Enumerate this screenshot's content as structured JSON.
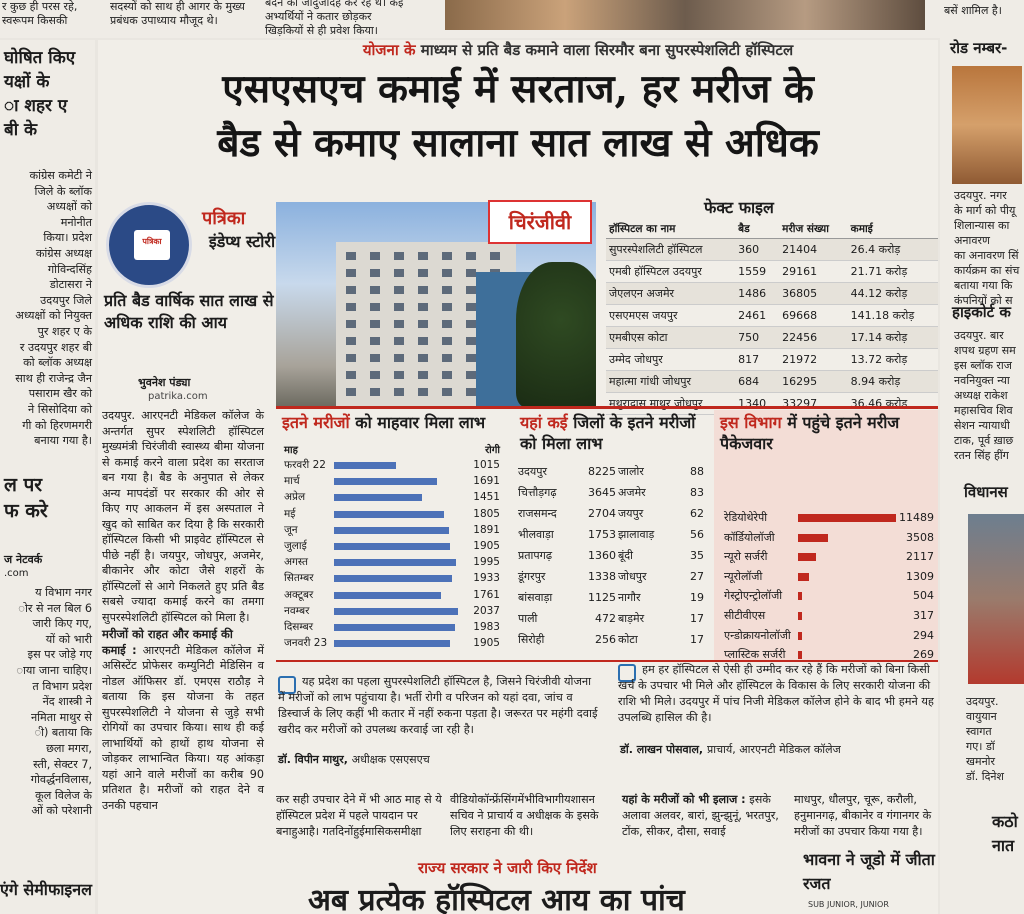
{
  "top_strip": {
    "left_fragments": [
      "र कुछ ही परस रहे,",
      "स्वरूपम किसकी"
    ],
    "mid_fragments": [
      "सदस्यों को साथ ही आगर के मुख्य",
      "प्रबंधक उपाध्याय मौजूद थे।"
    ],
    "mid2_fragments": [
      "बंदन का जादुजादह कर रह थ। कई",
      "अभ्यर्थियों ने कतार छोड़कर",
      "खिड़कियों से ही प्रवेश किया।"
    ],
    "right_fragment": "बसें शामिल है।"
  },
  "left_column": {
    "heading": [
      "घोषित किए",
      "यक्षों के",
      "ा शहर ए",
      "बी के"
    ],
    "body": [
      "कांग्रेस कमेटी ने",
      "जिले के ब्लॉक",
      "अध्यक्षों को",
      "मनोनीत",
      "किया। प्रदेश",
      "कांग्रेस अध्यक्ष",
      "गोविन्दसिंह",
      "डोटासरा ने",
      "उदयपुर जिले",
      "अध्यक्षों को नियुक्त",
      "पुर शहर ए के",
      "र उदयपुर शहर बी",
      "को ब्लॉक अध्यक्ष",
      "साथ ही राजेन्द्र जैन",
      "पसाराम खैर को",
      "ने सिसोदिया को",
      "गी को हिरणमगरी",
      "बनाया गया है।"
    ],
    "heading2": [
      "ल पर",
      "फ करे"
    ],
    "byline": "ज नेटवर्क",
    "site": ".com",
    "body2": [
      "य विभाग नगर",
      "ोर से नल बिल 6",
      "जारी किए गए,",
      "यों को भारी",
      "इस पर जोड़े गए",
      "ाया जाना चाहिए।",
      "त विभाग प्रदेश",
      "नेंद शास्त्री ने",
      "नमिता माथुर से",
      "ी) बताया कि",
      "छला मगरा,",
      "स्ती, सेक्टर 7,",
      "गोवर्द्धनविलास,",
      "कूल विलेज के",
      "ओं को परेशानी"
    ],
    "footer": "एंगे सेमीफाइनल मैच"
  },
  "article": {
    "kicker_red": "योजना के",
    "kicker_rest": "माध्यम से प्रति बैड कमाने वाला सिरमौर बना सुपरस्पेशलिटी हॉस्पिटल",
    "headline_line1": "एसएसएच कमाई में सरताज, हर मरीज के",
    "headline_line2": "बैड से कमाए सालाना सात लाख से अधिक",
    "brand": "पत्रिका",
    "logo_text": "पत्रिका",
    "section": "इंडेप्थ स्टोरी",
    "summary": "प्रति बैड वार्षिक सात लाख से अधिक राशि की आय",
    "byline": "भुवनेश पंड्या",
    "byline_site": "patrika.com",
    "body": "उदयपुर. आरएनटी मेडिकल कॉलेज के अन्तर्गत सुपर स्पेशलिटी हॉस्पिटल मुख्यमंत्री चिरंजीवी स्वास्थ्य बीमा योजना से कमाई करने वाला प्रदेश का सरताज बन गया है। बैड के अनुपात से लेकर अन्य मापदंडों पर सरकार की ओर से किए गए आकलन में इस अस्पताल ने खुद को साबित कर दिया है कि सरकारी हॉस्पिटल किसी भी प्राइवेट हॉस्पिटल से पीछे नहीं है। जयपुर, जोधपुर, अजमेर, बीकानेर और कोटा जैसे शहरों के हॉस्पिटलों से आगे निकलते हुए प्रति बैड सबसे ज्यादा कमाई करने का तमगा सुपरस्पेशलिटी हॉस्पिटल को मिला है।",
    "sub_heading": "मरीजों को राहत और कमाई की",
    "body2_lead": "कमाई :",
    "body2": "आरएनटी मेडिकल कॉलेज में असिस्टेंट प्रोफेसर कम्युनिटी मेडिसिन व नोडल ऑफिसर डॉ. एमएस राठौड़ ने बताया कि इस योजना के तहत सुपरस्पेशलिटी ने योजना से जुड़े सभी रोगियों का उपचार किया। साथ ही कई लाभार्थियों को हाथों हाथ योजना से जोड़कर लाभान्वित किया। यह आंकड़ा यहां आने वाले मरीजों का करीब 90 प्रतिशत है। मरीजों को राहत देने व उनकी पहचान"
  },
  "photo": {
    "badge": "चिरंजीवी"
  },
  "fact_file": {
    "title": "फेक्ट फाइल",
    "headers": [
      "हॉस्पिटल का नाम",
      "बैड",
      "मरीज संख्या",
      "कमाई"
    ],
    "rows": [
      [
        "सुपरस्पेशलिटी हॉस्पिटल",
        "360",
        "21404",
        "26.4 करोड़"
      ],
      [
        "एमबी हॉस्पिटल उदयपुर",
        "1559",
        "29161",
        "21.71 करोड़"
      ],
      [
        "जेएलएन अजमेर",
        "1486",
        "36805",
        "44.12 करोड़"
      ],
      [
        "एसएमएस जयपुर",
        "2461",
        "69668",
        "141.18 करोड़"
      ],
      [
        "एमबीएस कोटा",
        "750",
        "22456",
        "17.14 करोड़"
      ],
      [
        "उम्मेद जोधपुर",
        "817",
        "21972",
        "13.72 करोड़"
      ],
      [
        "महात्मा गांधी जोधपुर",
        "684",
        "16295",
        "8.94 करोड़"
      ],
      [
        "मथुरादास माथुर जोधपुर",
        "1340",
        "33297",
        "36.46 करोड़"
      ]
    ]
  },
  "monthly": {
    "title_red": "इतने मरीजों",
    "title_rest": "को माहवार मिला लाभ",
    "col_month": "माह",
    "col_patients": "रोगी",
    "chart_data": {
      "type": "bar",
      "categories": [
        "फरवरी 22",
        "मार्च",
        "अप्रेल",
        "मई",
        "जून",
        "जुलाई",
        "अगस्त",
        "सितम्बर",
        "अक्टूबर",
        "नवम्बर",
        "दिसम्बर",
        "जनवरी 23"
      ],
      "values": [
        1015,
        1691,
        1451,
        1805,
        1891,
        1905,
        1995,
        1933,
        1761,
        2037,
        1983,
        1905
      ]
    }
  },
  "districts": {
    "title_red": "यहां कई",
    "title_rest": "जिलों के इतने मरीजों को मिला लाभ",
    "left": [
      [
        "उदयपुर",
        "8225"
      ],
      [
        "चित्तौड़गढ़",
        "3645"
      ],
      [
        "राजसमन्द",
        "2704"
      ],
      [
        "भीलवाड़ा",
        "1753"
      ],
      [
        "प्रतापगढ़",
        "1360"
      ],
      [
        "डूंगरपुर",
        "1338"
      ],
      [
        "बांसवाड़ा",
        "1125"
      ],
      [
        "पाली",
        "472"
      ],
      [
        "सिरोही",
        "256"
      ]
    ],
    "right": [
      [
        "जालोर",
        "88"
      ],
      [
        "अजमेर",
        "83"
      ],
      [
        "जयपुर",
        "62"
      ],
      [
        "झालावाड़",
        "56"
      ],
      [
        "बूंदी",
        "35"
      ],
      [
        "जोधपुर",
        "27"
      ],
      [
        "नागौर",
        "19"
      ],
      [
        "बाड़मेर",
        "17"
      ],
      [
        "कोटा",
        "17"
      ]
    ]
  },
  "departments": {
    "title_red": "इस विभाग",
    "title_rest": "में पहुंचे इतने मरीज पैकेजवार",
    "chart_data": {
      "type": "bar",
      "categories": [
        "रेडियोथेरेपी",
        "कॉर्डियोलॉजी",
        "न्यूरो सर्जरी",
        "न्यूरोलॉजी",
        "गेस्ट्रोएन्ट्रोलॉजी",
        "सीटीवीएस",
        "एन्डोक्रायनोलॉजी",
        "प्लास्टिक सर्जरी"
      ],
      "values": [
        11489,
        3508,
        2117,
        1309,
        504,
        317,
        294,
        269
      ]
    }
  },
  "quotes": {
    "q1": "यह प्रदेश का पहला सुपरस्पेशलिटी हॉस्पिटल है, जिसने चिरंजीवी योजना में मरीजों को लाभ पहुंचाया है। भर्ती रोगी व परिजन को यहां दवा, जांच व डिस्चार्ज के लिए कहीं भी कतार में नहीं रुकना पड़ता है। जरूरत पर महंगी दवाई खरीद कर मरीजों को उपलब्ध करवाई जा रही है।",
    "q1_name": "डॉ. विपीन माथुर,",
    "q1_title": "अधीक्षक एसएसएच",
    "q2": "हम हर हॉस्पिटल से ऐसी ही उम्मीद कर रहे हैं कि मरीजों को बिना किसी खर्च के उपचार भी मिले और हॉस्पिटल के विकास के लिए सरकारी योजना की राशि भी मिले। उदयपुर में पांच निजी मेडिकल कॉलेज होने के बाद भी हमने यह उपलब्धि हासिल की है।",
    "q2_name": "डॉ. लाखन पोसवाल,",
    "q2_title": "प्राचार्य, आरएनटी मेडिकल कॉलेज"
  },
  "bottom": {
    "col1": "कर सही उपचार देने में भी आठ माह से ये हॉस्पिटल प्रदेश में पहले पायदान पर बनाहुआहै। गतदिनोंहुईमासिकसमीक्षा",
    "col2": "वीडियोकॉन्फ्रेंसिंगमेंभीविभागीयशासन सचिव ने प्राचार्य व अधीक्षक के इसके लिए सराहना की थी।",
    "col3_lead": "यहां के मरीजों को भी इलाज :",
    "col3": "इसके अलावा अलवर, बारां, झुन्झुनूं, भरतपुर, टोंक, सीकर, दौसा, सवाई",
    "col4": "माधपुर, धौलपुर, चूरू, करौली, हनुमानगढ़, बीकानेर व गंगानगर के मरीजों का उपचार किया गया है।",
    "directive": "राज्य सरकार ने जारी किए निर्देश",
    "big_headline": "अब प्रत्येक हॉस्पिटल आय का पांच",
    "bhavna": "भावना ने जूडो में जीता रजत",
    "junior": "SUB JUNIOR, JUNIOR"
  },
  "right_column": {
    "heading": "रोड नम्बर-",
    "body": [
      "उदयपुर. नगर",
      "के मार्ग को पीयू",
      "शिलान्यास का अनावरण",
      "का अनावरण सिं",
      "कार्यक्रम का संच",
      "बताया गया कि",
      "कंपनियों को स"
    ],
    "heading2": "हाइकोर्ट क",
    "body2": [
      "उदयपुर. बार",
      "शपथ ग्रहण सम",
      "इस ब्लॉक राज",
      "नवनियुक्त न्या",
      "अध्यक्ष राकेश",
      "महासचिव शिव",
      "सेशन न्यायाधी",
      "टाक, पूर्व ख़ाछ",
      "रतन सिंह हींग"
    ],
    "heading3": "विधानस",
    "body3": [
      "उदयपुर.",
      "वायुयान",
      "स्वागत",
      "गए। डॉ",
      "खमनोर",
      "डॉ. दिनेश"
    ],
    "footer": [
      "कठो",
      "नात"
    ]
  }
}
